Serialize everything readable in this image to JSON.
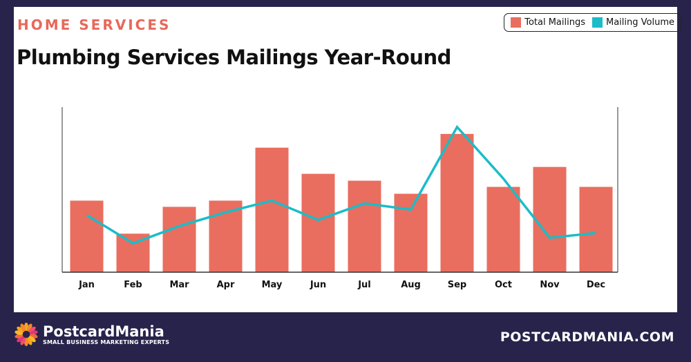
{
  "header": {
    "kicker": "HOME SERVICES",
    "title": "Plumbing Services Mailings Year-Round"
  },
  "legend": {
    "bars": "Total Mailings",
    "line": "Mailing Volume"
  },
  "colors": {
    "bars": "#e96e5f",
    "line": "#1bbcc8",
    "background": "#28234b"
  },
  "footer": {
    "brand": "PostcardMania",
    "tagline": "SMALL BUSINESS MARKETING EXPERTS",
    "url": "POSTCARDMANIA.COM"
  },
  "chart_data": {
    "type": "bar",
    "categories": [
      "Jan",
      "Feb",
      "Mar",
      "Apr",
      "May",
      "Jun",
      "Jul",
      "Aug",
      "Sep",
      "Oct",
      "Nov",
      "Dec"
    ],
    "series": [
      {
        "name": "Total Mailings",
        "type": "bar",
        "values": [
          104,
          56,
          95,
          104,
          181,
          143,
          133,
          114,
          201,
          124,
          153,
          124
        ]
      },
      {
        "name": "Mailing Volume",
        "type": "line",
        "values": [
          83,
          42,
          67,
          87,
          104,
          76,
          100,
          91,
          211,
          136,
          50,
          57
        ]
      }
    ],
    "xlabel": "",
    "ylabel": "",
    "ylim": [
      0,
      240
    ],
    "grid": false,
    "legend_position": "top-right",
    "y_tick_labels": false
  }
}
